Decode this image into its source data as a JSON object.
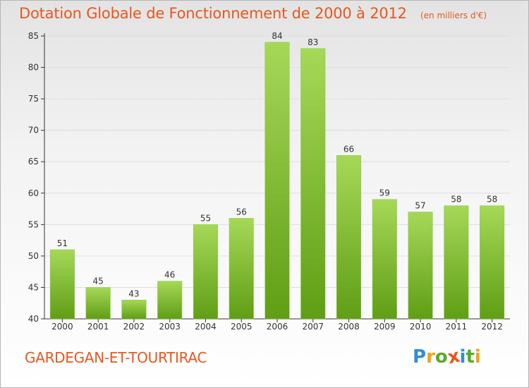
{
  "page": {
    "title": "Dotation Globale de Fonctionnement de 2000 à 2012",
    "unit": "(en milliers d'€)",
    "commune": "GARDEGAN-ET-TOURTIRAC",
    "brand_letters": [
      "P",
      "r",
      "o",
      "x",
      "i",
      "t",
      "i"
    ],
    "brand_colors": [
      "#2f8fd6",
      "#f0a11a",
      "#5aaa2a",
      "#e8571e",
      "#2f8fd6",
      "#5aaa2a",
      "#f0a11a"
    ]
  },
  "colors": {
    "title": "#e8571e",
    "bar_light": "#a6d858",
    "bar_dark": "#5f9e15",
    "axis": "#333333",
    "grid": "#dedede"
  },
  "chart_data": {
    "type": "bar",
    "title": "Dotation Globale de Fonctionnement de 2000 à 2012",
    "subtitle": "(en milliers d'€)",
    "xlabel": "",
    "ylabel": "",
    "categories": [
      "2000",
      "2001",
      "2002",
      "2003",
      "2004",
      "2005",
      "2006",
      "2007",
      "2008",
      "2009",
      "2010",
      "2011",
      "2012"
    ],
    "values": [
      51,
      45,
      43,
      46,
      55,
      56,
      84,
      83,
      66,
      59,
      57,
      58,
      58
    ],
    "ylim": [
      40,
      85
    ],
    "yticks": [
      40,
      45,
      50,
      55,
      60,
      65,
      70,
      75,
      80,
      85
    ],
    "grid": true,
    "data_labels": true
  }
}
